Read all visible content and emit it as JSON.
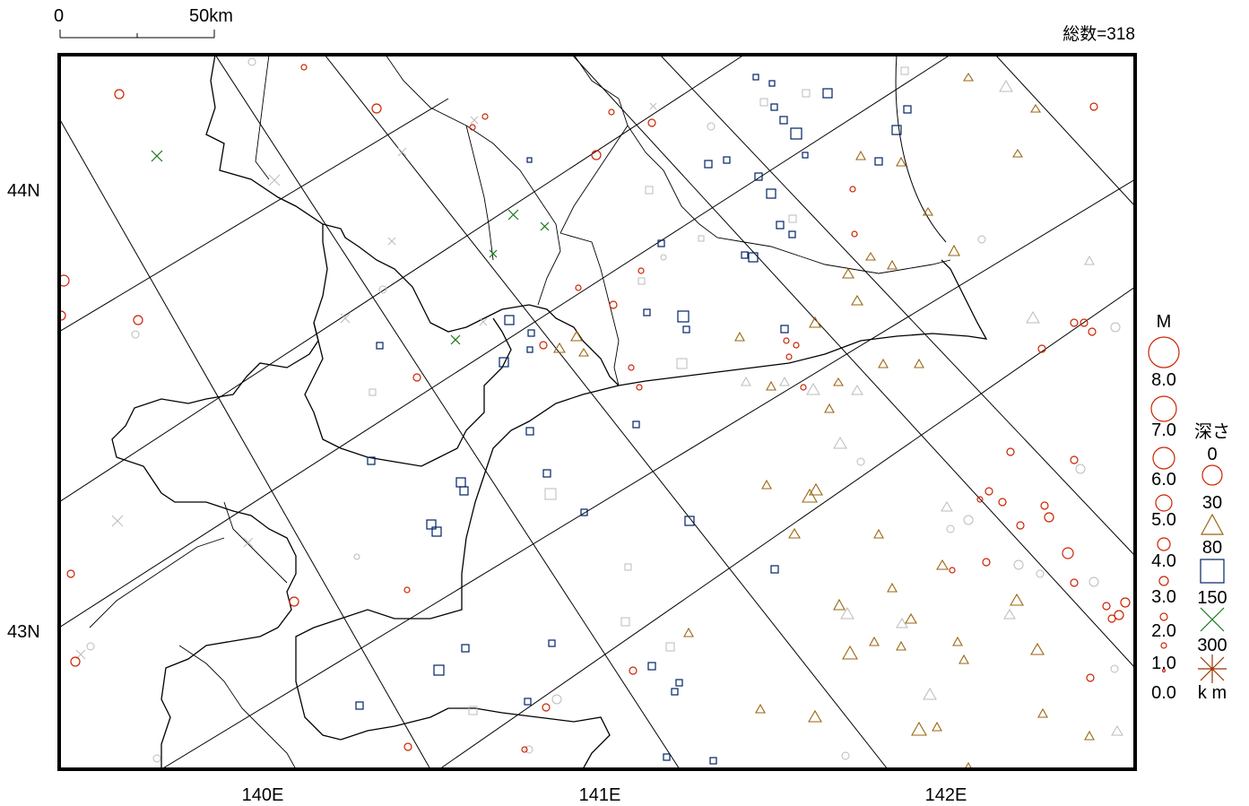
{
  "scale_bar": {
    "start_label": "0",
    "end_label": "50km"
  },
  "total_count": "総数=318",
  "axes": {
    "lat_labels": [
      "44N",
      "43N"
    ],
    "lon_labels": [
      "140E",
      "141E",
      "142E"
    ]
  },
  "legend": {
    "magnitude_title": "M",
    "magnitudes": [
      "8.0",
      "7.0",
      "6.0",
      "5.0",
      "4.0",
      "3.0",
      "2.0",
      "1.0",
      "0.0"
    ],
    "depth_title": "深さ",
    "depth_values": [
      "0",
      "30",
      "80",
      "150",
      "300"
    ],
    "depth_unit": "k m"
  },
  "colors": {
    "shallow": "#cc2200",
    "mid": "#996611",
    "deep": "#002266",
    "very_deep": "#117711",
    "old": "#bbbbbb",
    "line": "#000000"
  }
}
